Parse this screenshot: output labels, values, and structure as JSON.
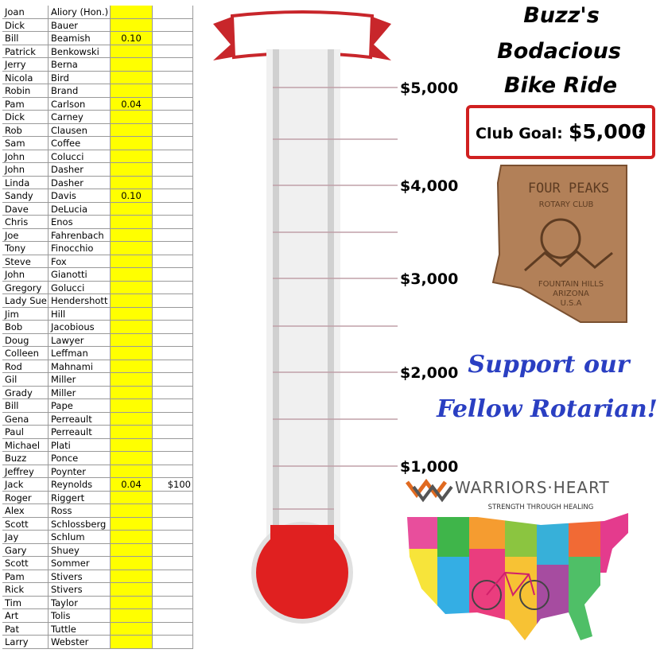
{
  "sheet": {
    "rows": [
      {
        "first": "Joan",
        "last": "Aliory  (Hon.)"
      },
      {
        "first": "Dick",
        "last": "Bauer"
      },
      {
        "first": "Bill",
        "last": "Beamish",
        "rate": "0.10"
      },
      {
        "first": "Patrick",
        "last": "Benkowski"
      },
      {
        "first": "Jerry",
        "last": "Berna"
      },
      {
        "first": "Nicola",
        "last": "Bird"
      },
      {
        "first": "Robin",
        "last": "Brand"
      },
      {
        "first": "Pam",
        "last": "Carlson",
        "rate": "0.04"
      },
      {
        "first": "Dick",
        "last": "Carney"
      },
      {
        "first": "Rob",
        "last": "Clausen"
      },
      {
        "first": "Sam",
        "last": "Coffee"
      },
      {
        "first": "John",
        "last": "Colucci"
      },
      {
        "first": "John",
        "last": "Dasher"
      },
      {
        "first": "Linda",
        "last": "Dasher"
      },
      {
        "first": "Sandy",
        "last": "Davis",
        "rate": "0.10"
      },
      {
        "first": "Dave",
        "last": "DeLucia"
      },
      {
        "first": "Chris",
        "last": "Enos"
      },
      {
        "first": "Joe",
        "last": "Fahrenbach"
      },
      {
        "first": "Tony",
        "last": "Finocchio"
      },
      {
        "first": "Steve",
        "last": "Fox"
      },
      {
        "first": "John",
        "last": "Gianotti"
      },
      {
        "first": "Gregory",
        "last": "Golucci"
      },
      {
        "first": "Lady Sue",
        "last": "Hendershott"
      },
      {
        "first": "Jim",
        "last": "Hill"
      },
      {
        "first": "Bob",
        "last": "Jacobious"
      },
      {
        "first": "Doug",
        "last": "Lawyer"
      },
      {
        "first": "Colleen",
        "last": "Leffman"
      },
      {
        "first": "Rod",
        "last": "Mahnami"
      },
      {
        "first": "Gil",
        "last": "Miller"
      },
      {
        "first": "Grady",
        "last": "Miller"
      },
      {
        "first": "Bill",
        "last": "Pape"
      },
      {
        "first": "Gena",
        "last": "Perreault"
      },
      {
        "first": "Paul",
        "last": "Perreault"
      },
      {
        "first": "Michael",
        "last": "Plati"
      },
      {
        "first": "Buzz",
        "last": "Ponce"
      },
      {
        "first": "Jeffrey",
        "last": "Poynter"
      },
      {
        "first": "Jack",
        "last": "Reynolds",
        "rate": "0.04",
        "amount": "$100"
      },
      {
        "first": "Roger",
        "last": "Riggert"
      },
      {
        "first": "Alex",
        "last": "Ross"
      },
      {
        "first": "Scott",
        "last": "Schlossberg"
      },
      {
        "first": "Jay",
        "last": "Schlum"
      },
      {
        "first": "Gary",
        "last": "Shuey"
      },
      {
        "first": "Scott",
        "last": "Sommer"
      },
      {
        "first": "Pam",
        "last": "Stivers"
      },
      {
        "first": "Rick",
        "last": "Stivers"
      },
      {
        "first": "Tim",
        "last": "Taylor"
      },
      {
        "first": "Art",
        "last": "Tolis"
      },
      {
        "first": "Pat",
        "last": "Tuttle"
      },
      {
        "first": "Larry",
        "last": "Webster"
      }
    ]
  },
  "thermometer": {
    "scale": [
      "$5,000",
      "$4,000",
      "$3,000",
      "$2,000",
      "$1,000"
    ]
  },
  "title": [
    "Buzz's",
    "Bodacious",
    "Bike Ride"
  ],
  "goal": {
    "label": "Club Goal:",
    "amount": "$5,000",
    "mark": "?"
  },
  "club_logo": {
    "name": "FOUR PEAKS",
    "sub": "ROTARY CLUB",
    "city": "FOUNTAIN HILLS",
    "state": "ARIZONA",
    "country": "U.S.A"
  },
  "slogan": [
    "Support our",
    "Fellow Rotarian!"
  ],
  "sponsor": {
    "name": "WARRIORS·HEART",
    "tagline": "STRENGTH THROUGH HEALING"
  }
}
